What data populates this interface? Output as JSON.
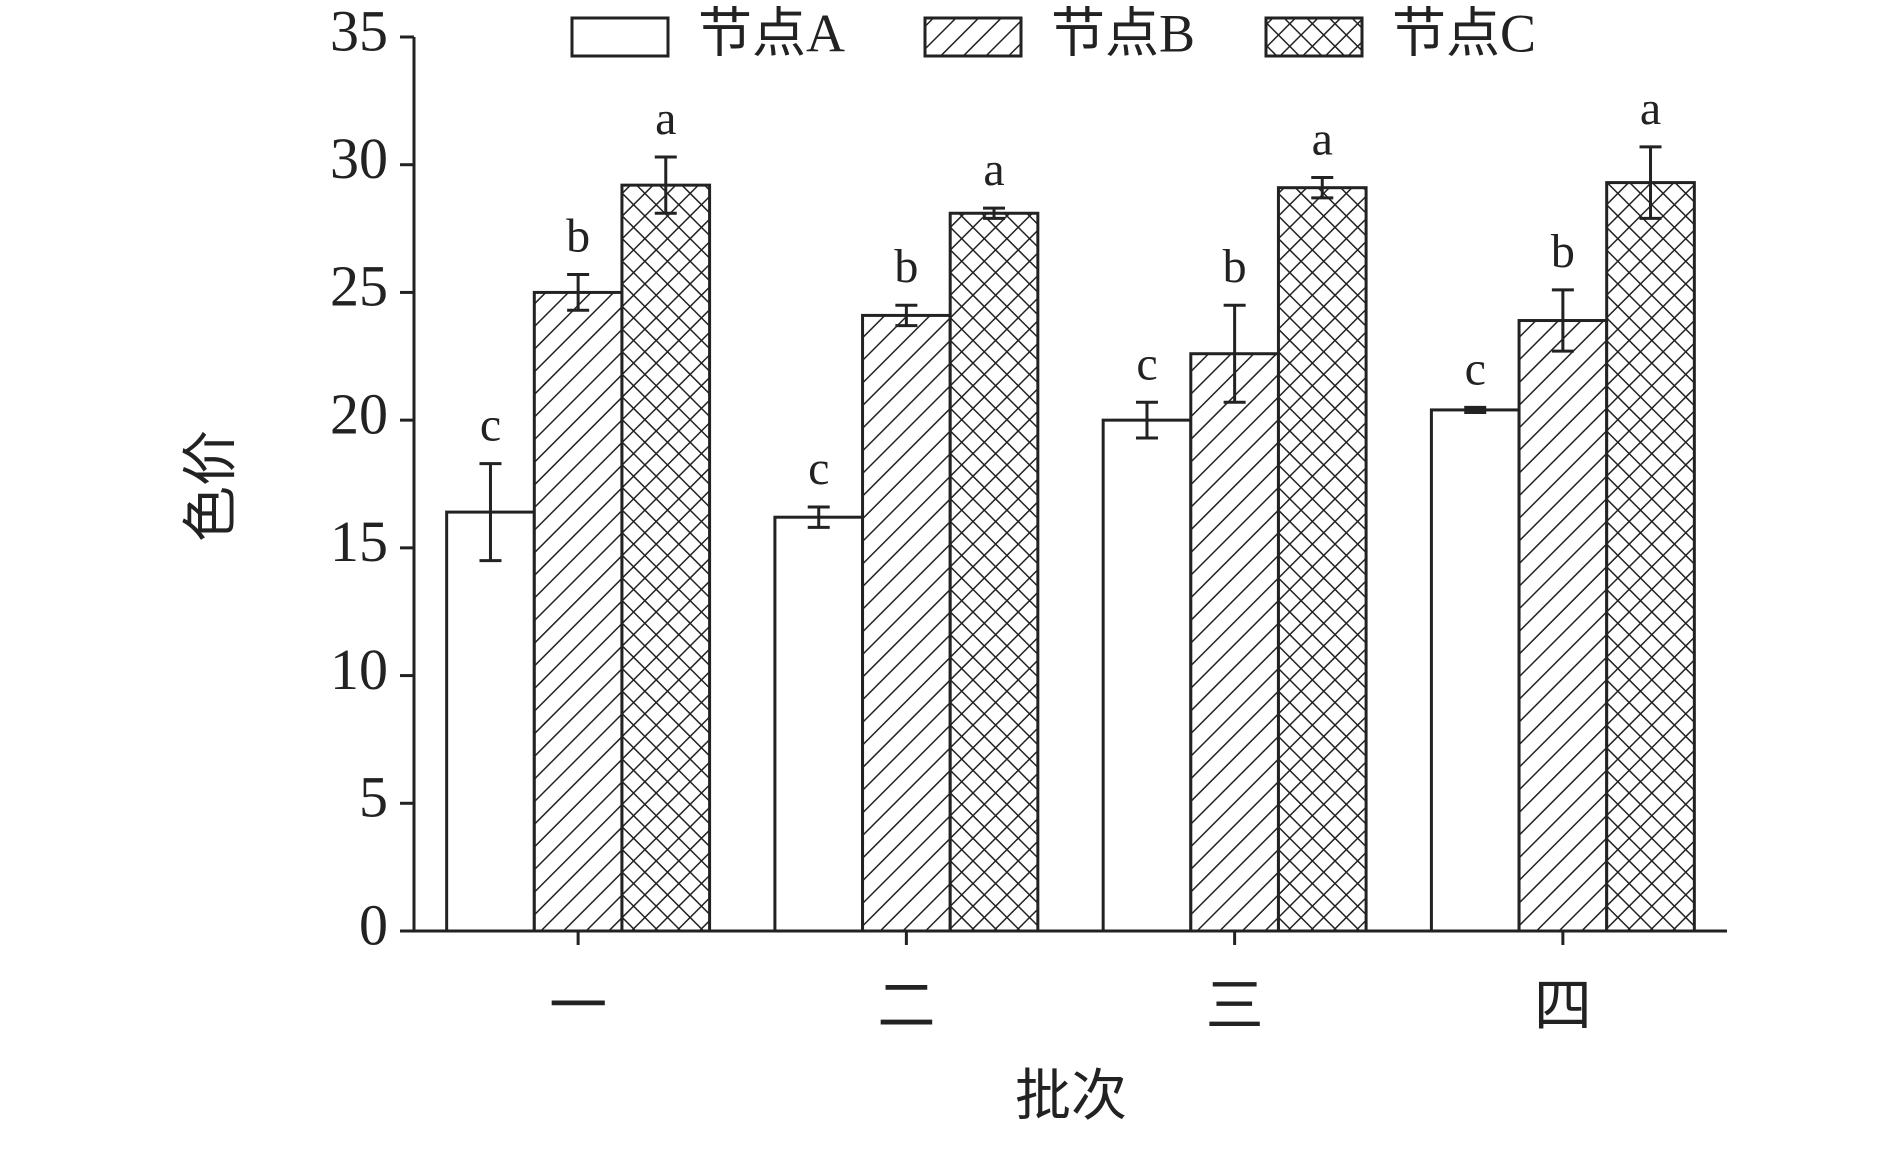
{
  "chart_data": {
    "type": "bar",
    "x_label": "批次",
    "y_label": "色价",
    "categories": [
      "一",
      "二",
      "三",
      "四"
    ],
    "ylim": [
      0,
      35
    ],
    "yticks": [
      0,
      5,
      10,
      15,
      20,
      25,
      30,
      35
    ],
    "legend": "top",
    "series": [
      {
        "name": "节点A",
        "color": "#ffffff",
        "pattern": "none",
        "values": [
          16.4,
          16.2,
          20.0,
          20.4
        ],
        "errors": [
          1.9,
          0.4,
          0.7,
          0.1
        ],
        "labels": [
          "c",
          "c",
          "c",
          "c"
        ]
      },
      {
        "name": "节点B",
        "color": "#ffffff",
        "pattern": "diagonal",
        "values": [
          25.0,
          24.1,
          22.6,
          23.9
        ],
        "errors": [
          0.7,
          0.4,
          1.9,
          1.2
        ],
        "labels": [
          "b",
          "b",
          "b",
          "b"
        ]
      },
      {
        "name": "节点C",
        "color": "#ffffff",
        "pattern": "crosshatch",
        "values": [
          29.2,
          28.1,
          29.1,
          29.3
        ],
        "errors": [
          1.1,
          0.2,
          0.4,
          1.4
        ],
        "labels": [
          "a",
          "a",
          "a",
          "a"
        ]
      }
    ]
  }
}
